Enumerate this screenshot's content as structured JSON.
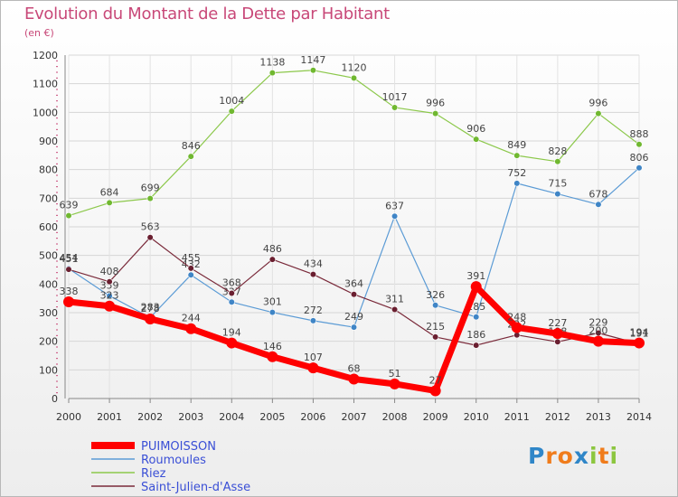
{
  "chart_data": {
    "type": "line",
    "title": "Evolution du Montant de la Dette par Habitant",
    "subtitle": "(en €)",
    "categories": [
      "2000",
      "2001",
      "2002",
      "2003",
      "2004",
      "2005",
      "2006",
      "2007",
      "2008",
      "2009",
      "2010",
      "2011",
      "2012",
      "2013",
      "2014"
    ],
    "ylim": [
      0,
      1200
    ],
    "yticks": [
      0,
      100,
      200,
      300,
      400,
      500,
      600,
      700,
      800,
      900,
      1000,
      1100,
      1200
    ],
    "grid": true,
    "legend_position": "bottom-left",
    "series": [
      {
        "name": "Riez",
        "color": "#8cc84b",
        "marker": "#70b830",
        "width": 1.2,
        "values": [
          639,
          684,
          699,
          846,
          1004,
          1138,
          1147,
          1120,
          1017,
          996,
          906,
          849,
          828,
          996,
          888
        ]
      },
      {
        "name": "Roumoules",
        "color": "#5b9bd5",
        "marker": "#3f85c6",
        "width": 1.2,
        "values": [
          454,
          359,
          283,
          432,
          337,
          301,
          272,
          249,
          637,
          326,
          285,
          752,
          715,
          678,
          806
        ]
      },
      {
        "name": "Saint-Julien-d'Asse",
        "color": "#7a2a3a",
        "marker": "#6a1f30",
        "width": 1.2,
        "values": [
          451,
          408,
          563,
          455,
          368,
          486,
          434,
          364,
          311,
          215,
          186,
          222,
          198,
          229,
          191
        ]
      },
      {
        "name": "PUIMOISSON",
        "color": "#ff0000",
        "marker": "#ff0000",
        "width": 7,
        "values": [
          338,
          323,
          278,
          244,
          194,
          146,
          107,
          68,
          51,
          27,
          391,
          248,
          227,
          200,
          194
        ]
      }
    ],
    "legend_order": [
      "PUIMOISSON",
      "Roumoules",
      "Riez",
      "Saint-Julien-d'Asse"
    ]
  },
  "logo": {
    "letters": [
      "P",
      "r",
      "o",
      "x",
      "i",
      "t",
      "i"
    ],
    "colors": [
      "#2f86c8",
      "#f07c1b",
      "#f07c1b",
      "#2f86c8",
      "#8cc63f",
      "#f07c1b",
      "#8cc63f"
    ]
  }
}
